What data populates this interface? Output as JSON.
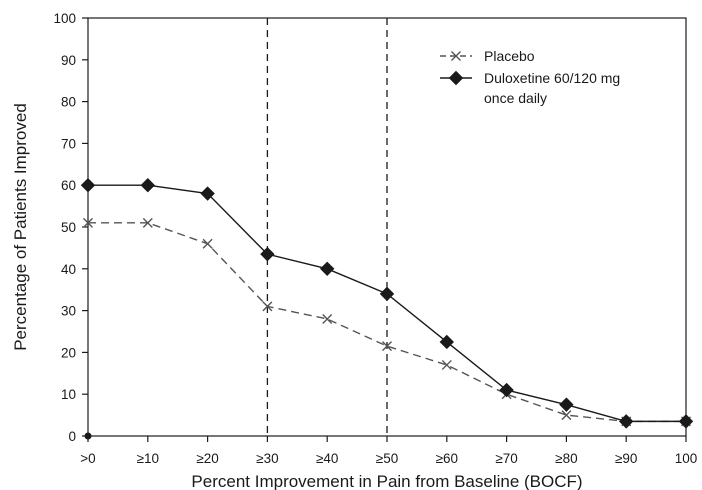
{
  "chart_data": {
    "type": "line",
    "xlabel": "Percent Improvement in Pain from Baseline (BOCF)",
    "ylabel": "Percentage of Patients Improved",
    "categories": [
      ">0",
      "≥10",
      "≥20",
      "≥30",
      "≥40",
      "≥50",
      "≥60",
      "≥70",
      "≥80",
      "≥90",
      "100"
    ],
    "ylim": [
      0,
      100
    ],
    "yticks": [
      0,
      10,
      20,
      30,
      40,
      50,
      60,
      70,
      80,
      90,
      100
    ],
    "grid": false,
    "reference_lines_at": [
      "≥30",
      "≥50"
    ],
    "legend_position": "top-right",
    "series": [
      {
        "name": "Placebo",
        "marker": "x",
        "line_style": "dashed",
        "color": "#555555",
        "values": [
          51,
          51,
          46,
          31,
          28,
          21.5,
          17,
          10,
          5,
          3.5,
          3.5
        ]
      },
      {
        "name": "Duloxetine 60/120 mg once daily",
        "legend_lines": [
          "Duloxetine 60/120 mg",
          "once daily"
        ],
        "marker": "diamond",
        "line_style": "solid",
        "color": "#1a1a1a",
        "values": [
          60,
          60,
          58,
          43.5,
          40,
          34,
          22.5,
          11,
          7.5,
          3.5,
          3.5
        ]
      }
    ]
  }
}
